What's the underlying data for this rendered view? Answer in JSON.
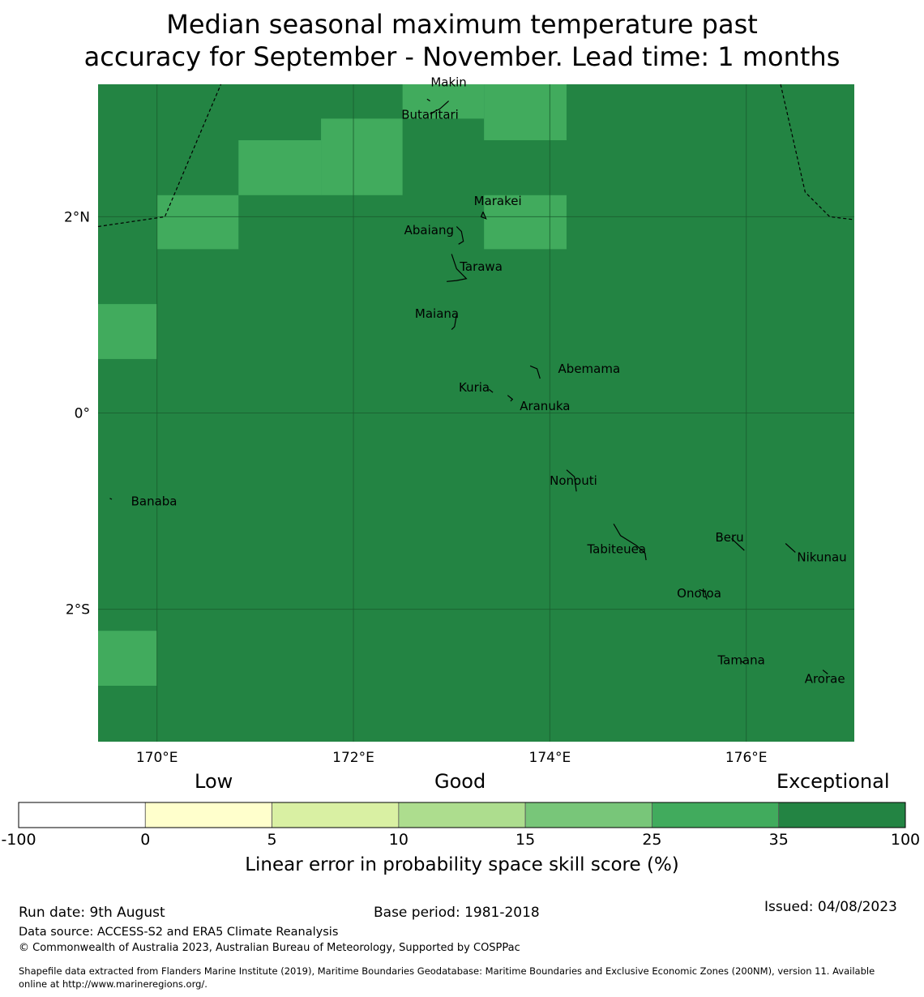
{
  "title": {
    "line1": "Median seasonal maximum temperature past",
    "line2": "accuracy for September - November. Lead time: 1 months"
  },
  "map": {
    "lon_range": [
      169.4,
      177.1
    ],
    "lat_range": [
      -3.35,
      3.35
    ],
    "lon_ticks": [
      {
        "value": 170,
        "label": "170°E"
      },
      {
        "value": 172,
        "label": "172°E"
      },
      {
        "value": 174,
        "label": "174°E"
      },
      {
        "value": 176,
        "label": "176°E"
      }
    ],
    "lat_ticks": [
      {
        "value": 2,
        "label": "2°N"
      },
      {
        "value": 0,
        "label": "0°"
      },
      {
        "value": -2,
        "label": "2°S"
      }
    ],
    "background_color": "#238443",
    "highlight_color": "#41ab5d",
    "cells_35_25": [
      {
        "lon": [
          172.5,
          173.33
        ],
        "lat": [
          3.35,
          3.0
        ]
      },
      {
        "lon": [
          173.33,
          174.17
        ],
        "lat": [
          3.35,
          2.78
        ]
      },
      {
        "lon": [
          171.67,
          172.5
        ],
        "lat": [
          3.0,
          2.22
        ]
      },
      {
        "lon": [
          170.83,
          171.67
        ],
        "lat": [
          2.78,
          2.22
        ]
      },
      {
        "lon": [
          170.0,
          170.83
        ],
        "lat": [
          2.22,
          1.67
        ]
      },
      {
        "lon": [
          173.33,
          174.17
        ],
        "lat": [
          2.22,
          1.67
        ]
      },
      {
        "lon": [
          169.4,
          170.0
        ],
        "lat": [
          1.11,
          0.55
        ]
      },
      {
        "lon": [
          169.4,
          170.0
        ],
        "lat": [
          -2.22,
          -2.78
        ]
      }
    ],
    "places": [
      {
        "name": "Makin",
        "lon": 172.97,
        "lat": 3.33
      },
      {
        "name": "Butaritari",
        "lon": 172.78,
        "lat": 3.0
      },
      {
        "name": "Marakei",
        "lon": 173.47,
        "lat": 2.12
      },
      {
        "name": "Abaiang",
        "lon": 172.77,
        "lat": 1.82
      },
      {
        "name": "Tarawa",
        "lon": 173.3,
        "lat": 1.45
      },
      {
        "name": "Maiana",
        "lon": 172.85,
        "lat": 0.97
      },
      {
        "name": "Abemama",
        "lon": 174.4,
        "lat": 0.41
      },
      {
        "name": "Kuria",
        "lon": 173.23,
        "lat": 0.22
      },
      {
        "name": "Aranuka",
        "lon": 173.95,
        "lat": 0.03
      },
      {
        "name": "Banaba",
        "lon": 169.97,
        "lat": -0.94
      },
      {
        "name": "Nonouti",
        "lon": 174.24,
        "lat": -0.73
      },
      {
        "name": "Tabiteuea",
        "lon": 174.68,
        "lat": -1.43
      },
      {
        "name": "Beru",
        "lon": 175.83,
        "lat": -1.31
      },
      {
        "name": "Nikunau",
        "lon": 176.77,
        "lat": -1.51
      },
      {
        "name": "Onotoa",
        "lon": 175.52,
        "lat": -1.88
      },
      {
        "name": "Tamana",
        "lon": 175.95,
        "lat": -2.56
      },
      {
        "name": "Arorae",
        "lon": 176.8,
        "lat": -2.75
      }
    ]
  },
  "colorbar": {
    "category_labels": [
      "Low",
      "Good",
      "Exceptional"
    ],
    "boundaries": [
      "-100",
      "0",
      "5",
      "10",
      "15",
      "25",
      "35",
      "100"
    ],
    "colors": [
      "#ffffff",
      "#ffffcc",
      "#d9f0a3",
      "#addd8e",
      "#78c679",
      "#41ab5d",
      "#238443"
    ],
    "label": "Linear error in probability space skill score (%)"
  },
  "footer": {
    "run_date": "Run date: 9th August",
    "base_period": "Base period: 1981-2018",
    "issued": "Issued: 04/08/2023",
    "data_source": "Data source: ACCESS-S2 and ERA5 Climate Reanalysis",
    "copyright": "© Commonwealth of Australia 2023, Australian Bureau of Meteorology, Supported by COSPPac",
    "shapefile_line1": "Shapefile data extracted from Flanders Marine Institute (2019), Maritime Boundaries Geodatabase: Maritime Boundaries and Exclusive Economic Zones (200NM), version 11. Available",
    "shapefile_line2": "online at http://www.marineregions.org/."
  }
}
